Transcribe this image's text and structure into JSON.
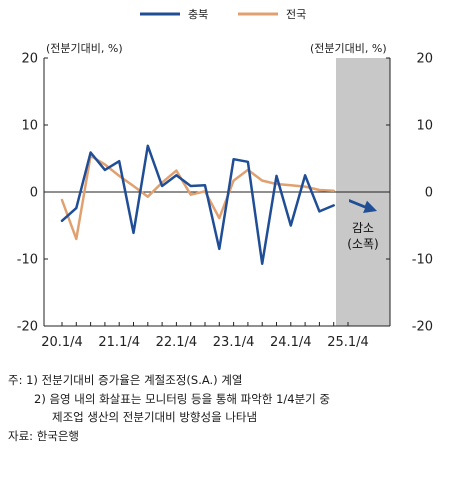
{
  "chart_data": {
    "type": "line",
    "x": [
      "20.1/4",
      "20.2/4",
      "20.3/4",
      "20.4/4",
      "21.1/4",
      "21.2/4",
      "21.3/4",
      "21.4/4",
      "22.1/4",
      "22.2/4",
      "22.3/4",
      "22.4/4",
      "23.1/4",
      "23.2/4",
      "23.3/4",
      "23.4/4",
      "24.1/4",
      "24.2/4",
      "24.3/4",
      "24.4/4",
      "25.1/4"
    ],
    "xticks": [
      "20.1/4",
      "21.1/4",
      "22.1/4",
      "23.1/4",
      "24.1/4",
      "25.1/4"
    ],
    "series": [
      {
        "name": "충북",
        "color": "#1f4e96",
        "values": [
          -4.3,
          -2.4,
          5.9,
          3.3,
          4.6,
          -6.1,
          6.9,
          0.9,
          2.5,
          0.9,
          1.0,
          -8.5,
          4.9,
          4.5,
          -10.7,
          2.4,
          -5.0,
          2.5,
          -2.9,
          -2.0,
          null
        ]
      },
      {
        "name": "전국",
        "color": "#e0a070",
        "values": [
          -1.2,
          -7.0,
          5.4,
          4.1,
          2.4,
          0.9,
          -0.7,
          1.4,
          3.2,
          -0.4,
          0.1,
          -3.9,
          1.7,
          3.3,
          1.7,
          1.2,
          1.0,
          0.8,
          0.3,
          0.2,
          null
        ]
      }
    ],
    "ylim": [
      -20,
      20
    ],
    "yticks": [
      20,
      10,
      0,
      -10,
      -20
    ],
    "y_unit_left": "(전분기대비, %)",
    "y_unit_right": "(전분기대비, %)",
    "legend_position": "top-center",
    "shaded_period": "25.1/4",
    "annotation": {
      "lines": [
        "감소",
        "(소폭)"
      ],
      "arrow": "down-right"
    },
    "grid": false
  },
  "notes": {
    "note1": "주: 1) 전분기대비 증가율은 계절조정(S.A.) 계열",
    "note2": "2) 음영 내의 화살표는 모니터링 등을 통해 파악한 1/4분기 중",
    "note3": "제조업 생산의 전분기대비 방향성을 나타냄",
    "source": "자료: 한국은행"
  }
}
